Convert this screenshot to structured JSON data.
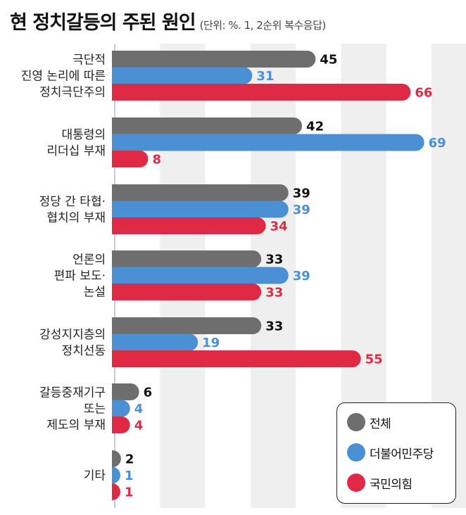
{
  "title": "현 정치갈등의 주된 원인",
  "note": "(단위: %. 1, 2순위 복수응답)",
  "colors": {
    "overall": "#6e6e6e",
    "democratic": "#4a90d4",
    "ppp": "#e02a45",
    "stripe": "#efefef"
  },
  "chart_data": {
    "type": "bar",
    "orientation": "horizontal",
    "title": "현 정치갈등의 주된 원인",
    "unit": "%",
    "categories": [
      [
        "극단적",
        "진영 논리에 따른",
        "정치극단주의"
      ],
      [
        "대통령의",
        "리더십 부재"
      ],
      [
        "정당 간 타협·",
        "협치의 부재"
      ],
      [
        "언론의",
        "편파 보도·",
        "논설"
      ],
      [
        "강성지지층의",
        "정치선동"
      ],
      [
        "갈등중재기구",
        "또는",
        "제도의 부재"
      ],
      [
        "기타"
      ]
    ],
    "series": [
      {
        "name": "전체",
        "values": [
          45,
          42,
          39,
          33,
          33,
          6,
          2
        ]
      },
      {
        "name": "더불어민주당",
        "values": [
          31,
          69,
          39,
          39,
          19,
          4,
          1
        ]
      },
      {
        "name": "국민의힘",
        "values": [
          66,
          8,
          34,
          33,
          55,
          4,
          1
        ]
      }
    ],
    "xlim": [
      0,
      70
    ],
    "legend_position": "bottom-right"
  }
}
